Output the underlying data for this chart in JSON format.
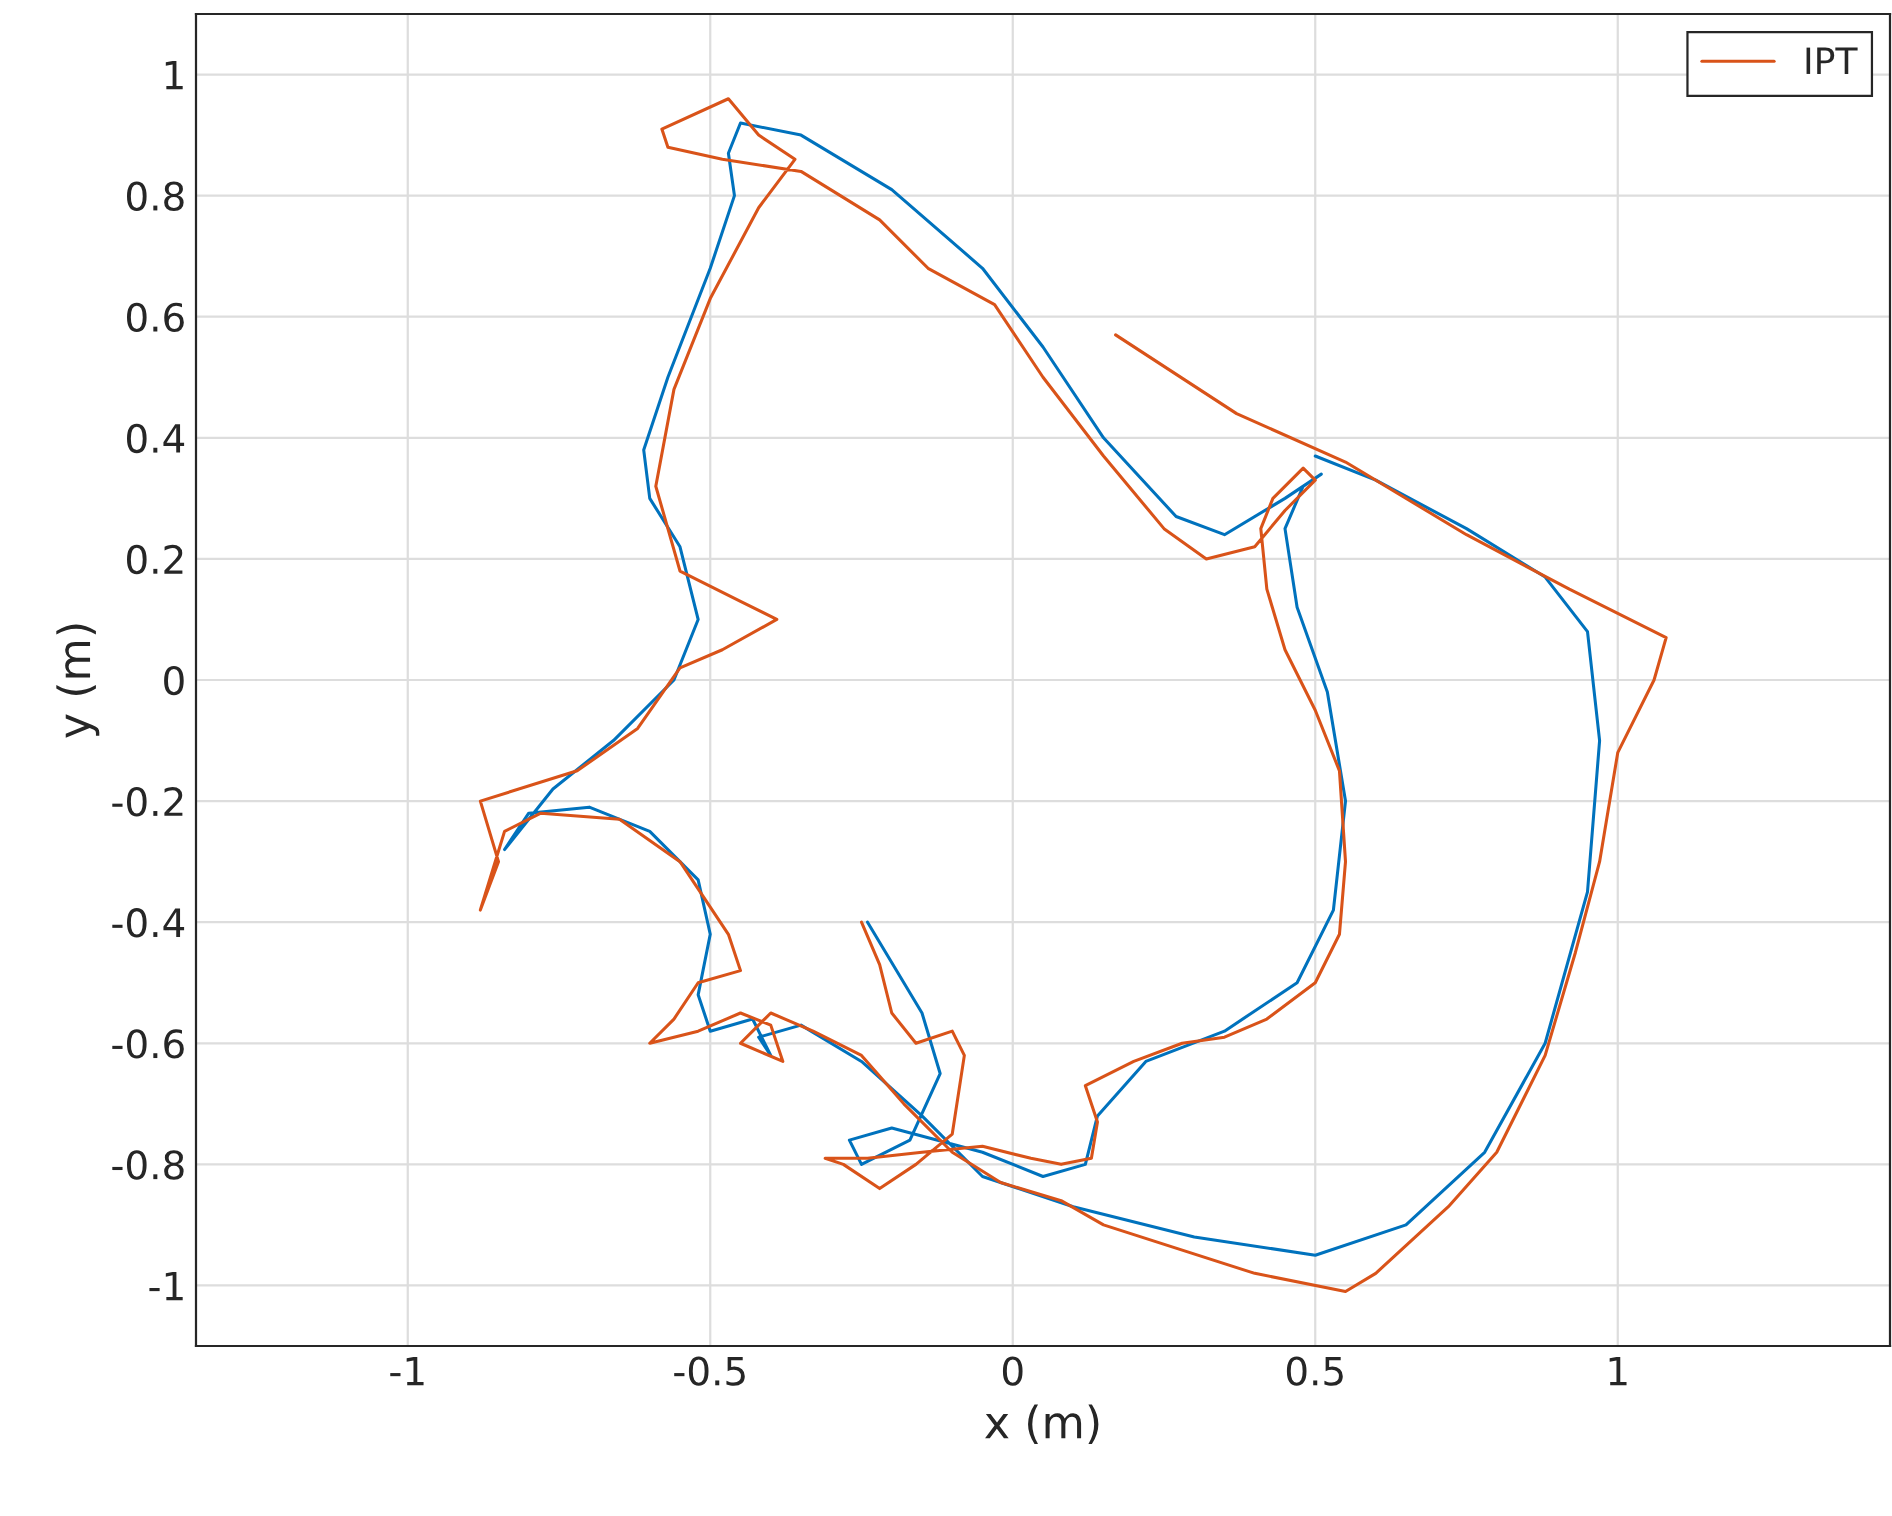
{
  "chart_data": {
    "type": "line",
    "xlabel": "x (m)",
    "ylabel": "y (m)",
    "xlim": [
      -1.35,
      1.45
    ],
    "ylim": [
      -1.1,
      1.1
    ],
    "xticks": [
      -1,
      -0.5,
      0,
      0.5,
      1
    ],
    "yticks": [
      -1,
      -0.8,
      -0.6,
      -0.4,
      -0.2,
      0,
      0.2,
      0.4,
      0.6,
      0.8,
      1
    ],
    "grid": true,
    "legend": "top right",
    "series": [
      {
        "color": "#0072bd",
        "x": [
          -0.24,
          -0.15,
          -0.12,
          -0.17,
          -0.25,
          -0.27,
          -0.2,
          -0.05,
          0.05,
          0.12,
          0.14,
          0.22,
          0.35,
          0.47,
          0.53,
          0.55,
          0.52,
          0.47,
          0.45,
          0.48,
          0.51,
          0.45,
          0.35,
          0.27,
          0.15,
          0.05,
          -0.05,
          -0.2,
          -0.35,
          -0.45,
          -0.47,
          -0.46,
          -0.5,
          -0.57,
          -0.61,
          -0.6,
          -0.55,
          -0.52,
          -0.56,
          -0.66,
          -0.76,
          -0.84,
          -0.8,
          -0.7,
          -0.6,
          -0.52,
          -0.5,
          -0.52,
          -0.5,
          -0.43,
          -0.4,
          -0.42,
          -0.35,
          -0.25,
          -0.15,
          -0.05,
          0.1,
          0.3,
          0.5,
          0.65,
          0.78,
          0.88,
          0.95,
          0.97,
          0.95,
          0.88,
          0.75,
          0.6,
          0.5
        ],
        "values": [
          -0.4,
          -0.55,
          -0.65,
          -0.76,
          -0.8,
          -0.76,
          -0.74,
          -0.78,
          -0.82,
          -0.8,
          -0.72,
          -0.63,
          -0.58,
          -0.5,
          -0.38,
          -0.2,
          -0.02,
          0.12,
          0.25,
          0.32,
          0.34,
          0.3,
          0.24,
          0.27,
          0.4,
          0.55,
          0.68,
          0.81,
          0.9,
          0.92,
          0.87,
          0.8,
          0.68,
          0.5,
          0.38,
          0.3,
          0.22,
          0.1,
          0.0,
          -0.1,
          -0.18,
          -0.28,
          -0.22,
          -0.21,
          -0.25,
          -0.33,
          -0.42,
          -0.52,
          -0.58,
          -0.56,
          -0.62,
          -0.59,
          -0.57,
          -0.63,
          -0.72,
          -0.82,
          -0.87,
          -0.92,
          -0.95,
          -0.9,
          -0.78,
          -0.6,
          -0.35,
          -0.1,
          0.08,
          0.17,
          0.25,
          0.33,
          0.37
        ]
      },
      {
        "name": "IPT",
        "color": "#d95319",
        "x": [
          -0.25,
          -0.22,
          -0.2,
          -0.16,
          -0.1,
          -0.08,
          -0.1,
          -0.16,
          -0.22,
          -0.28,
          -0.31,
          -0.24,
          -0.15,
          -0.05,
          0.03,
          0.08,
          0.13,
          0.14,
          0.12,
          0.2,
          0.28,
          0.35,
          0.42,
          0.5,
          0.54,
          0.55,
          0.54,
          0.5,
          0.45,
          0.42,
          0.41,
          0.43,
          0.48,
          0.5,
          0.45,
          0.4,
          0.32,
          0.25,
          0.15,
          0.05,
          -0.03,
          -0.14,
          -0.22,
          -0.35,
          -0.48,
          -0.57,
          -0.58,
          -0.47,
          -0.42,
          -0.36,
          -0.42,
          -0.5,
          -0.56,
          -0.59,
          -0.57,
          -0.55,
          -0.45,
          -0.39,
          -0.48,
          -0.55,
          -0.62,
          -0.72,
          -0.88,
          -0.85,
          -0.88,
          -0.84,
          -0.78,
          -0.65,
          -0.55,
          -0.47,
          -0.45,
          -0.52,
          -0.56,
          -0.6,
          -0.52,
          -0.45,
          -0.4,
          -0.38,
          -0.45,
          -0.4,
          -0.33,
          -0.25,
          -0.18,
          -0.1,
          -0.02,
          0.08,
          0.15,
          0.4,
          0.55,
          0.6,
          0.72,
          0.8,
          0.88,
          0.93,
          0.97,
          1.0,
          1.06,
          1.08,
          0.92,
          0.75,
          0.55,
          0.37,
          0.17
        ],
        "values": [
          -0.4,
          -0.47,
          -0.55,
          -0.6,
          -0.58,
          -0.62,
          -0.75,
          -0.8,
          -0.84,
          -0.8,
          -0.79,
          -0.79,
          -0.78,
          -0.77,
          -0.79,
          -0.8,
          -0.79,
          -0.73,
          -0.67,
          -0.63,
          -0.6,
          -0.59,
          -0.56,
          -0.5,
          -0.42,
          -0.3,
          -0.15,
          -0.05,
          0.05,
          0.15,
          0.25,
          0.3,
          0.35,
          0.33,
          0.28,
          0.22,
          0.2,
          0.25,
          0.37,
          0.5,
          0.62,
          0.68,
          0.76,
          0.84,
          0.86,
          0.88,
          0.91,
          0.96,
          0.9,
          0.86,
          0.78,
          0.63,
          0.48,
          0.32,
          0.25,
          0.18,
          0.13,
          0.1,
          0.05,
          0.02,
          -0.08,
          -0.15,
          -0.2,
          -0.3,
          -0.38,
          -0.25,
          -0.22,
          -0.23,
          -0.3,
          -0.42,
          -0.48,
          -0.5,
          -0.56,
          -0.6,
          -0.58,
          -0.55,
          -0.57,
          -0.63,
          -0.6,
          -0.55,
          -0.58,
          -0.62,
          -0.7,
          -0.78,
          -0.83,
          -0.86,
          -0.9,
          -0.98,
          -1.01,
          -0.98,
          -0.87,
          -0.78,
          -0.62,
          -0.45,
          -0.3,
          -0.12,
          0.0,
          0.07,
          0.15,
          0.24,
          0.36,
          0.44,
          0.57
        ]
      }
    ]
  }
}
